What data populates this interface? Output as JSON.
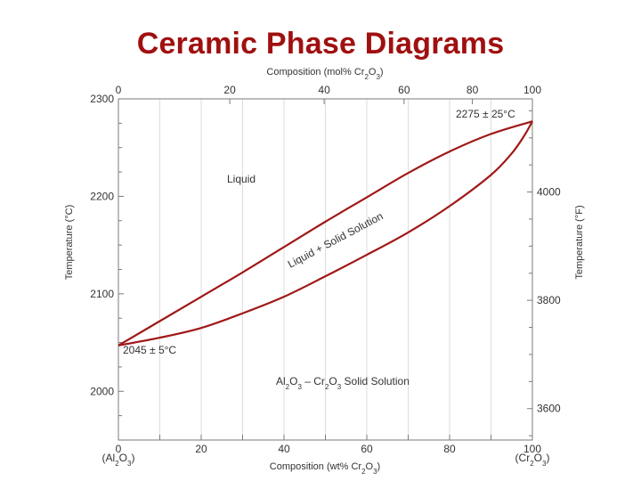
{
  "title": "Ceramic Phase Diagrams",
  "chart_data": {
    "type": "line",
    "top_axis": {
      "label_main": "Composition (mol% Cr",
      "label_sub1": "2",
      "label_mid": "O",
      "label_sub2": "3",
      "label_end": ")",
      "ticks": [
        0,
        20,
        40,
        60,
        80,
        100
      ],
      "tick_labels": [
        "0",
        "20",
        "40",
        "60",
        "80",
        "100"
      ],
      "tick_positions_wt": [
        0,
        26.9,
        49.7,
        69.0,
        85.5,
        100
      ]
    },
    "bottom_axis": {
      "label_main": "Composition (wt% Cr",
      "label_sub1": "2",
      "label_mid": "O",
      "label_sub2": "3",
      "label_end": ")",
      "range": [
        0,
        100
      ],
      "ticks": [
        0,
        20,
        40,
        60,
        80,
        100
      ],
      "tick_labels": [
        "0",
        "20",
        "40",
        "60",
        "80",
        "100"
      ],
      "minor_step": 10
    },
    "left_axis": {
      "label": "Temperature (°C)",
      "range": [
        1950,
        2300
      ],
      "ticks": [
        2000,
        2100,
        2200,
        2300
      ],
      "tick_labels": [
        "2000",
        "2100",
        "2200",
        "2300"
      ]
    },
    "right_axis": {
      "label": "Temperature (°F)",
      "ticks_f": [
        3600,
        3800,
        4000
      ],
      "tick_labels": [
        "3600",
        "3800",
        "4000"
      ]
    },
    "end_labels": {
      "left": {
        "pre": "(Al",
        "s1": "2",
        "mid": "O",
        "s2": "3",
        "post": ")"
      },
      "right": {
        "pre": "(Cr",
        "s1": "2",
        "mid": "O",
        "s2": "3",
        "post": ")"
      }
    },
    "grid": true,
    "series": [
      {
        "role": "liquidus",
        "color": "#a01818",
        "x": [
          0,
          10,
          20,
          30,
          40,
          50,
          60,
          70,
          80,
          90,
          100
        ],
        "y": [
          2047,
          2072,
          2097,
          2122,
          2148,
          2174,
          2199,
          2224,
          2246,
          2264,
          2277
        ]
      },
      {
        "role": "solidus",
        "color": "#a01818",
        "x": [
          0,
          10,
          20,
          30,
          40,
          50,
          60,
          70,
          80,
          90,
          95,
          98,
          100
        ],
        "y": [
          2047,
          2055,
          2065,
          2080,
          2097,
          2118,
          2140,
          2163,
          2190,
          2222,
          2244,
          2262,
          2277
        ]
      }
    ],
    "annotations": {
      "top_point": "2275 ± 25°C",
      "bottom_point": "2045 ± 5°C",
      "liquid": "Liquid",
      "two_phase": "Liquid + Solid Solution",
      "solid": {
        "a": "Al",
        "a1": "2",
        "b": "O",
        "b1": "3",
        "c": " – Cr",
        "c1": "2",
        "d": "O",
        "d1": "3",
        "e": " Solid Solution"
      }
    }
  }
}
